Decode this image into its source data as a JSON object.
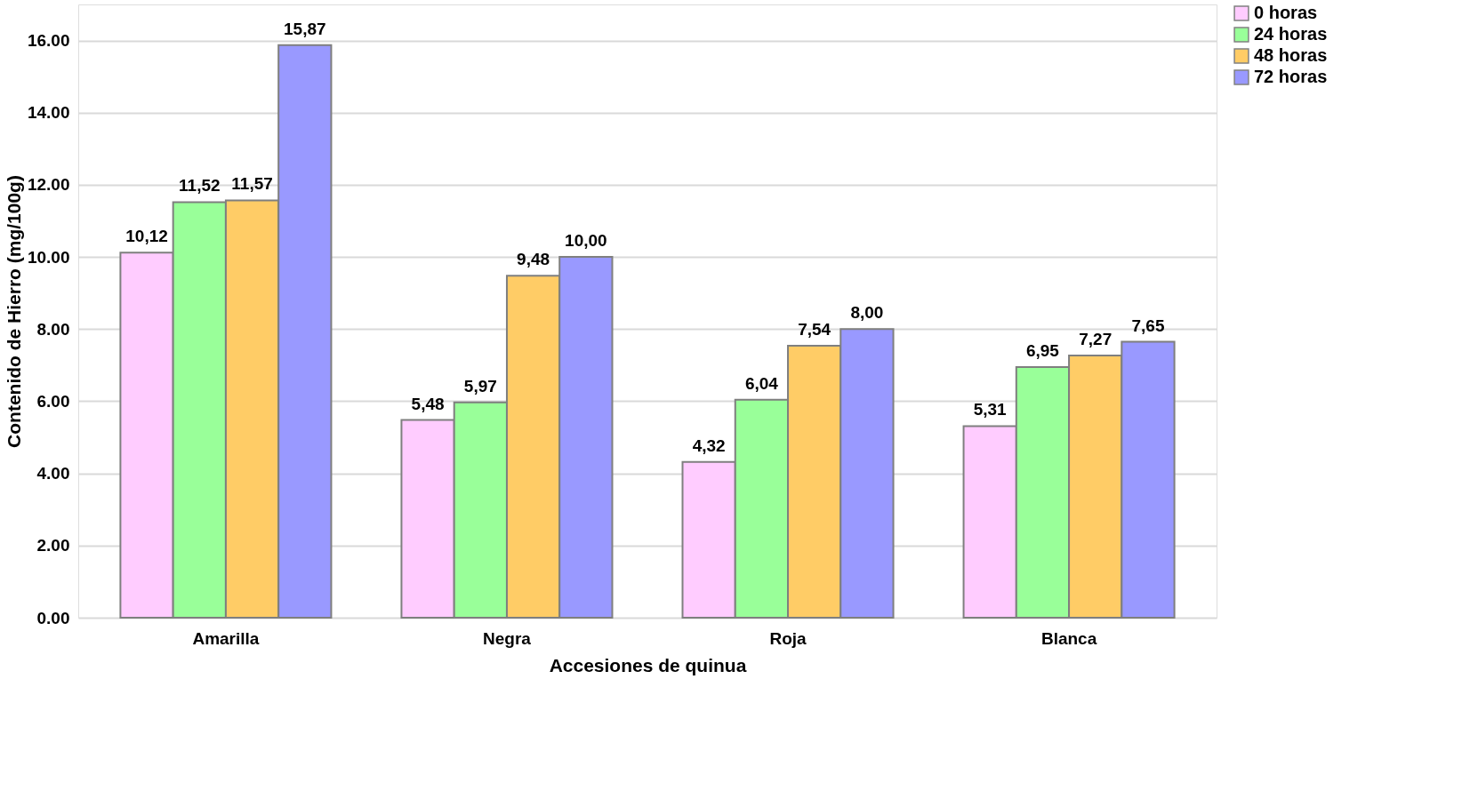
{
  "chart_data": {
    "type": "bar",
    "xlabel": "Accesiones de quinua",
    "ylabel": "Contenido de Hierro (mg/100g)",
    "categories": [
      "Amarilla",
      "Negra",
      "Roja",
      "Blanca"
    ],
    "series": [
      {
        "name": "0 horas",
        "color": "#ffccff",
        "values": [
          10.12,
          5.48,
          4.32,
          5.31
        ],
        "value_labels": [
          "10,12",
          "5,48",
          "4,32",
          "5,31"
        ]
      },
      {
        "name": "24 horas",
        "color": "#99ff99",
        "values": [
          11.52,
          5.97,
          6.04,
          6.95
        ],
        "value_labels": [
          "11,52",
          "5,97",
          "6,04",
          "6,95"
        ]
      },
      {
        "name": "48 horas",
        "color": "#ffcc66",
        "values": [
          11.57,
          9.48,
          7.54,
          7.27
        ],
        "value_labels": [
          "11,57",
          "9,48",
          "7,54",
          "7,27"
        ]
      },
      {
        "name": "72 horas",
        "color": "#9999ff",
        "values": [
          15.87,
          10.0,
          8.0,
          7.65
        ],
        "value_labels": [
          "15,87",
          "10,00",
          "8,00",
          "7,65"
        ]
      }
    ],
    "ylim": [
      0,
      17
    ],
    "yticks": [
      {
        "value": 0,
        "label": "0.00"
      },
      {
        "value": 2,
        "label": "2.00"
      },
      {
        "value": 4,
        "label": "4.00"
      },
      {
        "value": 6,
        "label": "6.00"
      },
      {
        "value": 8,
        "label": "8.00"
      },
      {
        "value": 10,
        "label": "10.00"
      },
      {
        "value": 12,
        "label": "12.00"
      },
      {
        "value": 14,
        "label": "14.00"
      },
      {
        "value": 16,
        "label": "16.00"
      }
    ],
    "grid": "y",
    "legend": "right"
  }
}
